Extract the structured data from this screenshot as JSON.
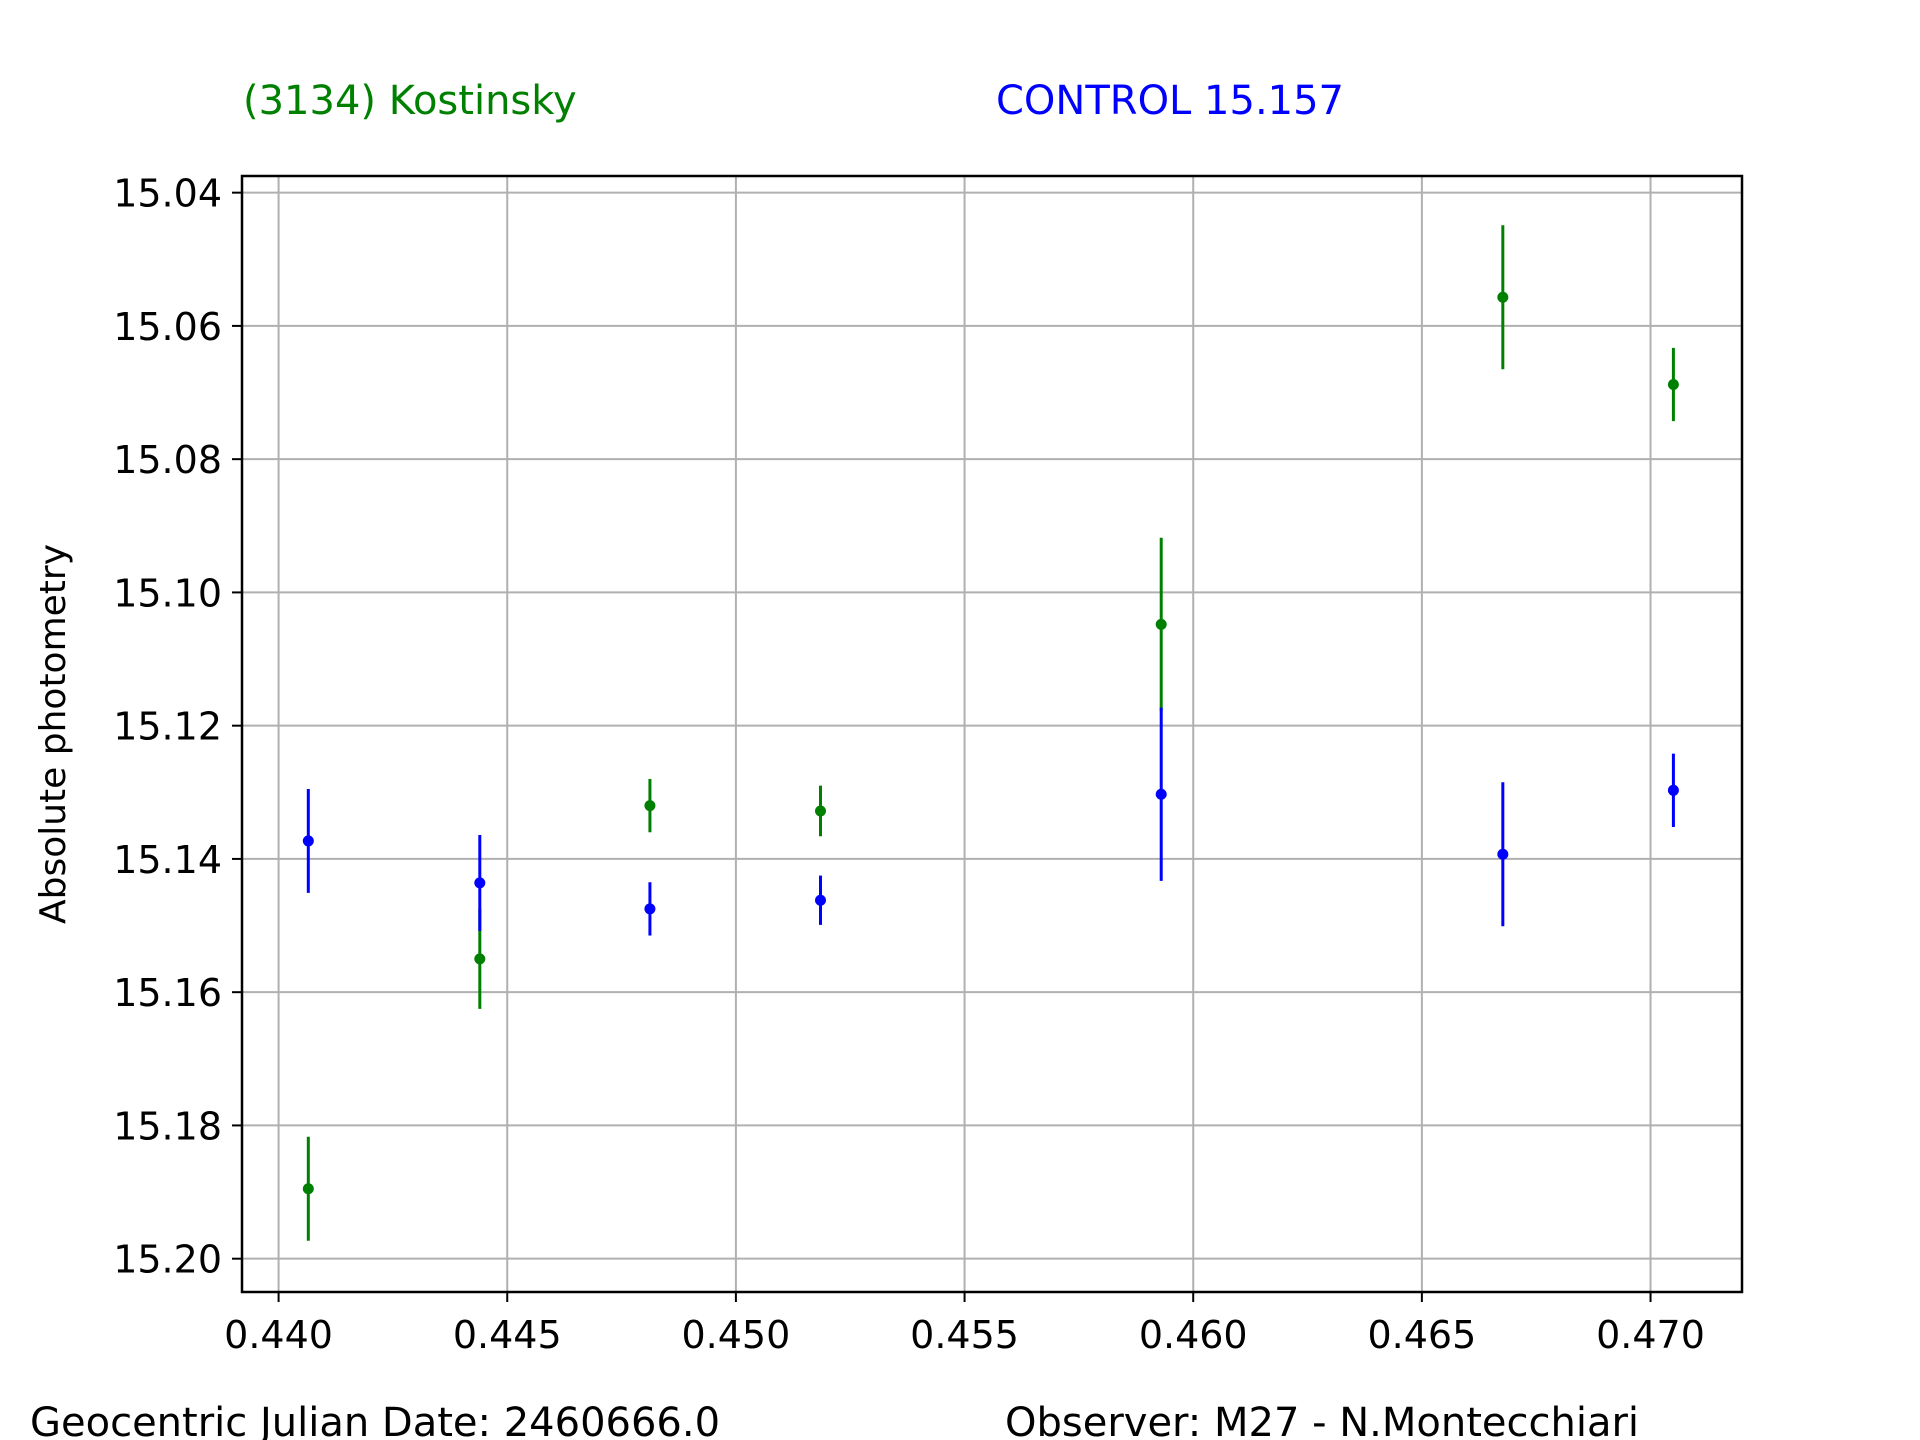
{
  "chart_data": {
    "type": "scatter",
    "title_left": "(3134) Kostinsky",
    "title_right": "CONTROL 15.157",
    "ylabel": "Absolute photometry",
    "footer_left": "Geocentric Julian Date: 2460666.0",
    "footer_right": "Observer: M27 - N.Montecchiari",
    "xlim": [
      0.4392,
      0.472
    ],
    "ylim": [
      15.205,
      15.0375
    ],
    "y_inverted": true,
    "grid": true,
    "xticks": [
      "0.440",
      "0.445",
      "0.450",
      "0.455",
      "0.460",
      "0.465",
      "0.470"
    ],
    "yticks": [
      "15.04",
      "15.06",
      "15.08",
      "15.10",
      "15.12",
      "15.14",
      "15.16",
      "15.18",
      "15.20"
    ],
    "series": [
      {
        "color": "#008000",
        "points": [
          {
            "x": 0.44065,
            "y": 15.1895,
            "err": 0.0078
          },
          {
            "x": 0.4444,
            "y": 15.155,
            "err": 0.0075
          },
          {
            "x": 0.44812,
            "y": 15.132,
            "err": 0.004
          },
          {
            "x": 0.45185,
            "y": 15.1328,
            "err": 0.0038
          },
          {
            "x": 0.4593,
            "y": 15.1048,
            "err": 0.013
          },
          {
            "x": 0.46677,
            "y": 15.0557,
            "err": 0.0108
          },
          {
            "x": 0.4705,
            "y": 15.0688,
            "err": 0.0055
          }
        ]
      },
      {
        "color": "#0000ff",
        "points": [
          {
            "x": 0.44065,
            "y": 15.1373,
            "err": 0.0078
          },
          {
            "x": 0.4444,
            "y": 15.1436,
            "err": 0.0072
          },
          {
            "x": 0.44812,
            "y": 15.1475,
            "err": 0.004
          },
          {
            "x": 0.45185,
            "y": 15.1462,
            "err": 0.0037
          },
          {
            "x": 0.4593,
            "y": 15.1303,
            "err": 0.013
          },
          {
            "x": 0.46677,
            "y": 15.1393,
            "err": 0.0108
          },
          {
            "x": 0.4705,
            "y": 15.1297,
            "err": 0.0055
          }
        ]
      }
    ]
  }
}
